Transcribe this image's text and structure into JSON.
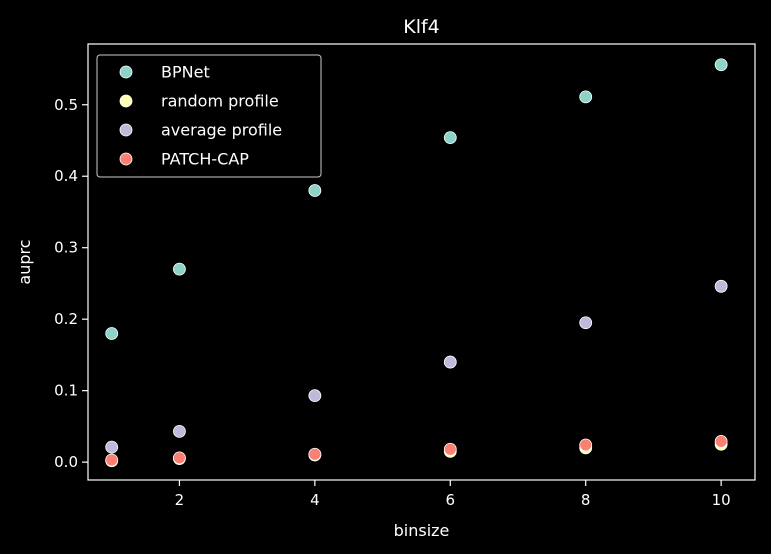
{
  "chart_data": {
    "type": "scatter",
    "title": "Klf4",
    "xlabel": "binsize",
    "ylabel": "auprc",
    "xlim": [
      0.65,
      10.5
    ],
    "ylim": [
      -0.025,
      0.585
    ],
    "xticks": [
      2,
      4,
      6,
      8,
      10
    ],
    "yticks": [
      0.0,
      0.1,
      0.2,
      0.3,
      0.4,
      0.5
    ],
    "ytick_labels": [
      "0.0",
      "0.1",
      "0.2",
      "0.3",
      "0.4",
      "0.5"
    ],
    "grid": false,
    "legend_position": "top-left",
    "x": [
      1,
      2,
      4,
      6,
      8,
      10
    ],
    "series": [
      {
        "name": "BPNet",
        "color": "#8dd3c7",
        "values": [
          0.18,
          0.27,
          0.38,
          0.454,
          0.511,
          0.556
        ]
      },
      {
        "name": "random profile",
        "color": "#ffffb3",
        "values": [
          0.002,
          0.005,
          0.01,
          0.015,
          0.02,
          0.025
        ]
      },
      {
        "name": "average profile",
        "color": "#bebada",
        "values": [
          0.021,
          0.043,
          0.093,
          0.14,
          0.195,
          0.246
        ]
      },
      {
        "name": "PATCH-CAP",
        "color": "#fb8072",
        "values": [
          0.003,
          0.006,
          0.011,
          0.018,
          0.024,
          0.029
        ]
      }
    ]
  }
}
